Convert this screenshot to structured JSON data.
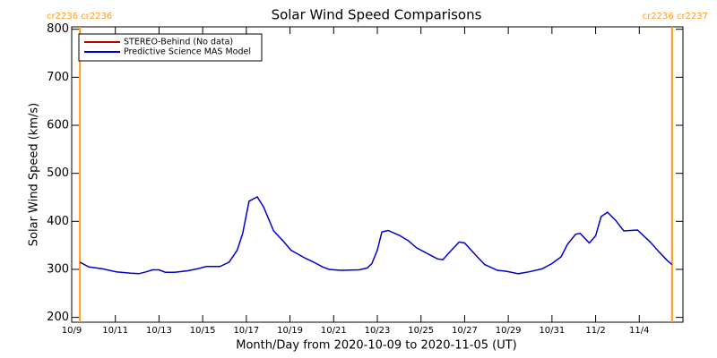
{
  "chart_data": {
    "type": "line",
    "title": "Solar Wind Speed Comparisons",
    "xlabel": "Month/Day from 2020-10-09 to 2020-11-05 (UT)",
    "ylabel": "Solar Wind Speed (km/s)",
    "x": [
      "2020-10-09T09:00",
      "2020-10-09T19:00",
      "2020-10-10T10:00",
      "2020-10-11T01:00",
      "2020-10-11T17:00",
      "2020-10-12T02:00",
      "2020-10-12T10:00",
      "2020-10-12T17:00",
      "2020-10-13T00:00",
      "2020-10-13T07:00",
      "2020-10-13T17:00",
      "2020-10-14T07:00",
      "2020-10-14T18:00",
      "2020-10-15T04:00",
      "2020-10-15T19:00",
      "2020-10-16T05:00",
      "2020-10-16T14:00",
      "2020-10-16T20:00",
      "2020-10-17T03:00",
      "2020-10-17T12:00",
      "2020-10-17T19:00",
      "2020-10-18T06:00",
      "2020-10-18T16:00",
      "2020-10-19T01:00",
      "2020-10-19T17:00",
      "2020-10-20T02:00",
      "2020-10-20T12:00",
      "2020-10-20T19:00",
      "2020-10-21T07:00",
      "2020-10-22T04:00",
      "2020-10-22T13:00",
      "2020-10-22T18:00",
      "2020-10-23T00:00",
      "2020-10-23T05:00",
      "2020-10-23T12:00",
      "2020-10-24T00:00",
      "2020-10-24T10:00",
      "2020-10-24T19:00",
      "2020-10-25T10:00",
      "2020-10-25T18:00",
      "2020-10-26T00:00",
      "2020-10-26T07:00",
      "2020-10-26T18:00",
      "2020-10-27T00:00",
      "2020-10-27T12:00",
      "2020-10-27T22:00",
      "2020-10-28T12:00",
      "2020-10-28T22:00",
      "2020-10-29T11:00",
      "2020-10-29T23:00",
      "2020-10-30T13:00",
      "2020-10-31T00:00",
      "2020-10-31T10:00",
      "2020-10-31T17:00",
      "2020-11-01T02:00",
      "2020-11-01T07:00",
      "2020-11-01T17:00",
      "2020-11-02T00:00",
      "2020-11-02T06:00",
      "2020-11-02T13:00",
      "2020-11-02T22:00",
      "2020-11-03T07:00",
      "2020-11-03T22:00",
      "2020-11-04T12:00",
      "2020-11-04T22:00",
      "2020-11-05T07:00",
      "2020-11-05T12:00"
    ],
    "series": [
      {
        "name": "STEREO-Behind (No data)",
        "color": "#c00000",
        "values": [
          null,
          null,
          null,
          null,
          null,
          null,
          null,
          null,
          null,
          null,
          null,
          null,
          null,
          null,
          null,
          null,
          null,
          null,
          null,
          null,
          null,
          null,
          null,
          null,
          null,
          null,
          null,
          null,
          null,
          null,
          null,
          null,
          null,
          null,
          null,
          null,
          null,
          null,
          null,
          null,
          null,
          null,
          null,
          null,
          null,
          null,
          null,
          null,
          null,
          null,
          null,
          null,
          null,
          null,
          null,
          null,
          null,
          null,
          null,
          null,
          null,
          null,
          null,
          null,
          null,
          null,
          null
        ]
      },
      {
        "name": "Predictive Science MAS Model",
        "color": "#0000cc",
        "values": [
          315,
          305,
          301,
          295,
          292,
          291,
          295,
          299,
          299,
          294,
          294,
          297,
          301,
          306,
          306,
          315,
          340,
          375,
          442,
          451,
          430,
          380,
          360,
          340,
          323,
          315,
          305,
          300,
          298,
          299,
          303,
          312,
          340,
          378,
          381,
          371,
          360,
          345,
          330,
          322,
          320,
          335,
          357,
          355,
          330,
          310,
          298,
          296,
          291,
          295,
          301,
          312,
          326,
          352,
          373,
          375,
          355,
          370,
          410,
          419,
          402,
          380,
          382,
          357,
          336,
          318,
          310
        ]
      }
    ],
    "xlim": [
      "2020-10-09",
      "2020-11-06"
    ],
    "xticks": [
      {
        "value": "2020-10-09",
        "label": "10/9"
      },
      {
        "value": "2020-10-11",
        "label": "10/11"
      },
      {
        "value": "2020-10-13",
        "label": "10/13"
      },
      {
        "value": "2020-10-15",
        "label": "10/15"
      },
      {
        "value": "2020-10-17",
        "label": "10/17"
      },
      {
        "value": "2020-10-19",
        "label": "10/19"
      },
      {
        "value": "2020-10-21",
        "label": "10/21"
      },
      {
        "value": "2020-10-23",
        "label": "10/23"
      },
      {
        "value": "2020-10-25",
        "label": "10/25"
      },
      {
        "value": "2020-10-27",
        "label": "10/27"
      },
      {
        "value": "2020-10-29",
        "label": "10/29"
      },
      {
        "value": "2020-10-31",
        "label": "10/31"
      },
      {
        "value": "2020-11-02",
        "label": "11/2"
      },
      {
        "value": "2020-11-04",
        "label": "11/4"
      }
    ],
    "ylim": [
      190,
      805
    ],
    "yticks": [
      200,
      300,
      400,
      500,
      600,
      700,
      800
    ],
    "legend": "upper left",
    "annotations": [
      {
        "x": "2020-10-09T09:00",
        "text": "cr2236 cr2236",
        "color": "#ff9a1a"
      },
      {
        "x": "2020-11-05T12:00",
        "text": "cr2236 cr2237",
        "color": "#ff9a1a"
      }
    ]
  }
}
